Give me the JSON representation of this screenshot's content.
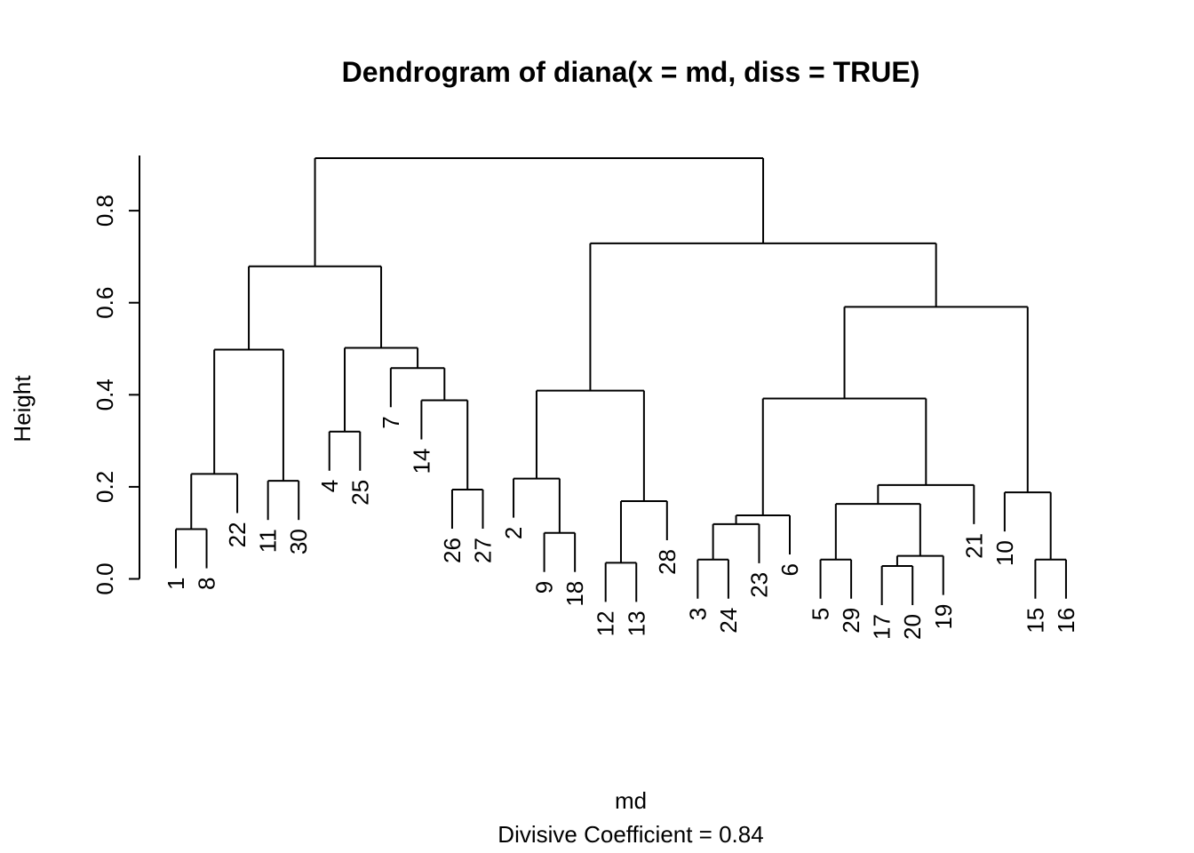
{
  "chart_data": {
    "type": "dendrogram",
    "title": "Dendrogram of  diana(x = md, diss = TRUE)",
    "xlabel": "md",
    "sub": "Divisive Coefficient =  0.84",
    "ylabel": "Height",
    "ylim": [
      0,
      0.92
    ],
    "yticks": [
      {
        "value": 0.0,
        "label": "0.0"
      },
      {
        "value": 0.2,
        "label": "0.2"
      },
      {
        "value": 0.4,
        "label": "0.4"
      },
      {
        "value": 0.6,
        "label": "0.6"
      },
      {
        "value": 0.8,
        "label": "0.8"
      }
    ],
    "leaf_order": [
      "1",
      "8",
      "22",
      "11",
      "30",
      "4",
      "25",
      "7",
      "14",
      "26",
      "27",
      "2",
      "9",
      "18",
      "12",
      "13",
      "28",
      "3",
      "24",
      "23",
      "6",
      "5",
      "29",
      "17",
      "20",
      "19",
      "21",
      "10",
      "15",
      "16"
    ],
    "merges": [
      {
        "id": "c1",
        "height": 0.108,
        "children": [
          "1",
          "8"
        ]
      },
      {
        "id": "c2",
        "height": 0.228,
        "children": [
          "c1",
          "22"
        ]
      },
      {
        "id": "c3",
        "height": 0.213,
        "children": [
          "11",
          "30"
        ]
      },
      {
        "id": "c4",
        "height": 0.498,
        "children": [
          "c2",
          "c3"
        ]
      },
      {
        "id": "c5",
        "height": 0.32,
        "children": [
          "4",
          "25"
        ]
      },
      {
        "id": "c6",
        "height": 0.194,
        "children": [
          "26",
          "27"
        ]
      },
      {
        "id": "c7",
        "height": 0.388,
        "children": [
          "14",
          "c6"
        ]
      },
      {
        "id": "c8",
        "height": 0.458,
        "children": [
          "7",
          "c7"
        ]
      },
      {
        "id": "c9",
        "height": 0.502,
        "children": [
          "c5",
          "c8"
        ]
      },
      {
        "id": "c10",
        "height": 0.679,
        "children": [
          "c4",
          "c9"
        ]
      },
      {
        "id": "c11",
        "height": 0.1,
        "children": [
          "9",
          "18"
        ]
      },
      {
        "id": "c12",
        "height": 0.218,
        "children": [
          "2",
          "c11"
        ]
      },
      {
        "id": "c13",
        "height": 0.035,
        "children": [
          "12",
          "13"
        ]
      },
      {
        "id": "c14",
        "height": 0.169,
        "children": [
          "c13",
          "28"
        ]
      },
      {
        "id": "c15",
        "height": 0.409,
        "children": [
          "c12",
          "c14"
        ]
      },
      {
        "id": "c16",
        "height": 0.042,
        "children": [
          "3",
          "24"
        ]
      },
      {
        "id": "c17",
        "height": 0.119,
        "children": [
          "c16",
          "23"
        ]
      },
      {
        "id": "c18",
        "height": 0.138,
        "children": [
          "c17",
          "6"
        ]
      },
      {
        "id": "c19",
        "height": 0.042,
        "children": [
          "5",
          "29"
        ]
      },
      {
        "id": "c20",
        "height": 0.028,
        "children": [
          "17",
          "20"
        ]
      },
      {
        "id": "c21",
        "height": 0.05,
        "children": [
          "c20",
          "19"
        ]
      },
      {
        "id": "c22",
        "height": 0.163,
        "children": [
          "c19",
          "c21"
        ]
      },
      {
        "id": "c23",
        "height": 0.204,
        "children": [
          "c22",
          "21"
        ]
      },
      {
        "id": "c24",
        "height": 0.392,
        "children": [
          "c18",
          "c23"
        ]
      },
      {
        "id": "c25",
        "height": 0.042,
        "children": [
          "15",
          "16"
        ]
      },
      {
        "id": "c26",
        "height": 0.188,
        "children": [
          "10",
          "c25"
        ]
      },
      {
        "id": "c27",
        "height": 0.591,
        "children": [
          "c24",
          "c26"
        ]
      },
      {
        "id": "c28",
        "height": 0.729,
        "children": [
          "c15",
          "c27"
        ]
      },
      {
        "id": "c29",
        "height": 0.914,
        "children": [
          "c10",
          "c28"
        ]
      }
    ],
    "grid": false
  }
}
